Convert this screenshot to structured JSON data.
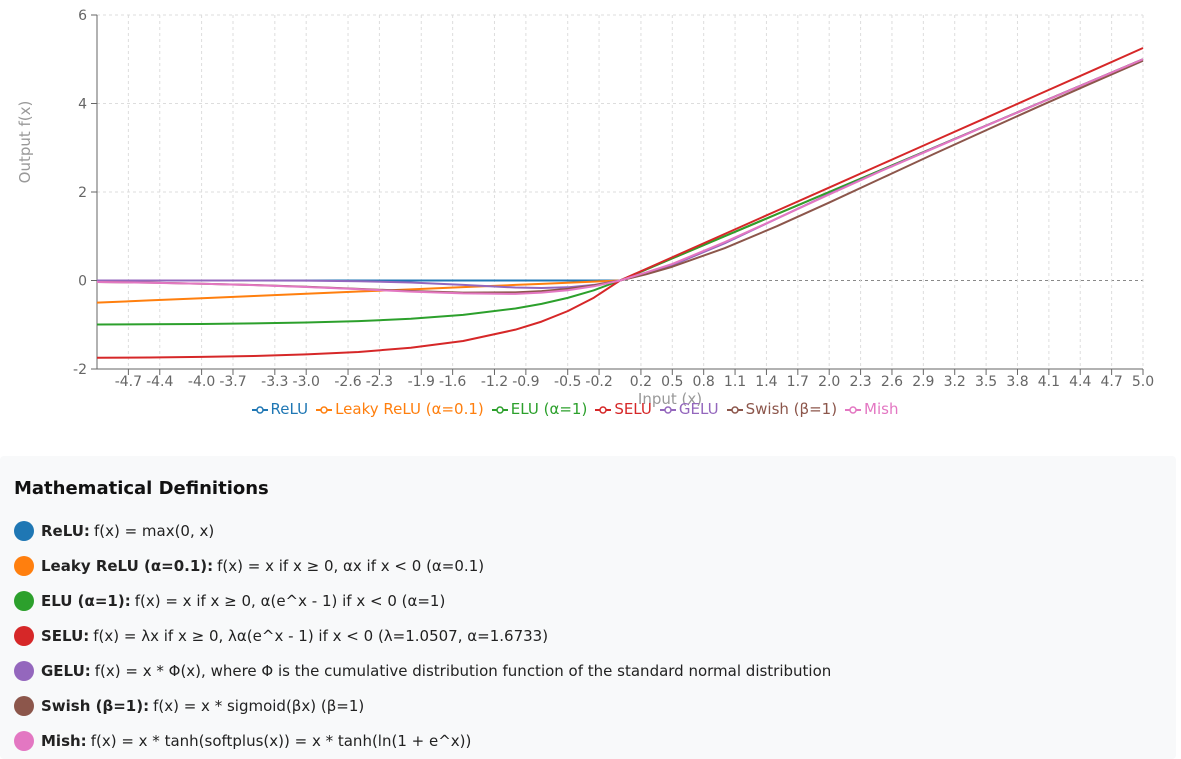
{
  "chart_data": {
    "type": "line",
    "title": "",
    "xlabel": "Input (x)",
    "ylabel": "Output f(x)",
    "xlim": [
      -5,
      5
    ],
    "ylim": [
      -2,
      6
    ],
    "yticks": [
      "-2",
      "0",
      "2",
      "4",
      "6"
    ],
    "xticks": [
      "-4.7",
      "-4.4",
      "-4.0",
      "-3.7",
      "-3.3",
      "-3.0",
      "-2.6",
      "-2.3",
      "-1.9",
      "-1.6",
      "-1.2",
      "-0.9",
      "-0.5",
      "-0.2",
      "0.2",
      "0.5",
      "0.8",
      "1.1",
      "1.4",
      "1.7",
      "2.0",
      "2.3",
      "2.6",
      "2.9",
      "3.2",
      "3.5",
      "3.8",
      "4.1",
      "4.4",
      "4.7",
      "5.0"
    ],
    "grid": true,
    "legend_position": "bottom",
    "x": [
      -5.0,
      -4.5,
      -4.0,
      -3.5,
      -3.0,
      -2.5,
      -2.0,
      -1.5,
      -1.0,
      -0.75,
      -0.5,
      -0.25,
      0.0,
      0.25,
      0.5,
      1.0,
      1.5,
      2.0,
      2.5,
      3.0,
      3.5,
      4.0,
      4.5,
      5.0
    ],
    "series": [
      {
        "name": "ReLU",
        "color": "#1f77b4",
        "values": [
          0,
          0,
          0,
          0,
          0,
          0,
          0,
          0,
          0,
          0,
          0,
          0,
          0,
          0.25,
          0.5,
          1,
          1.5,
          2,
          2.5,
          3,
          3.5,
          4,
          4.5,
          5
        ]
      },
      {
        "name": "Leaky ReLU (α=0.1)",
        "color": "#ff7f0e",
        "values": [
          -0.5,
          -0.45,
          -0.4,
          -0.35,
          -0.3,
          -0.25,
          -0.2,
          -0.15,
          -0.1,
          -0.075,
          -0.05,
          -0.025,
          0,
          0.25,
          0.5,
          1,
          1.5,
          2,
          2.5,
          3,
          3.5,
          4,
          4.5,
          5
        ]
      },
      {
        "name": "ELU (α=1)",
        "color": "#2ca02c",
        "values": [
          -0.993,
          -0.989,
          -0.982,
          -0.97,
          -0.95,
          -0.918,
          -0.865,
          -0.777,
          -0.632,
          -0.528,
          -0.393,
          -0.221,
          0,
          0.25,
          0.5,
          1,
          1.5,
          2,
          2.5,
          3,
          3.5,
          4,
          4.5,
          5
        ]
      },
      {
        "name": "SELU",
        "color": "#d62728",
        "values": [
          -1.747,
          -1.739,
          -1.727,
          -1.705,
          -1.67,
          -1.615,
          -1.52,
          -1.367,
          -1.111,
          -0.929,
          -0.692,
          -0.389,
          0,
          0.263,
          0.525,
          1.051,
          1.576,
          2.101,
          2.627,
          3.152,
          3.677,
          4.203,
          4.728,
          5.254
        ]
      },
      {
        "name": "GELU",
        "color": "#9467bd",
        "values": [
          0,
          0,
          0,
          -0.001,
          -0.004,
          -0.016,
          -0.045,
          -0.1,
          -0.159,
          -0.17,
          -0.154,
          -0.1,
          0,
          0.15,
          0.346,
          0.841,
          1.4,
          1.955,
          2.484,
          2.996,
          3.499,
          4.0,
          4.5,
          5.0
        ]
      },
      {
        "name": "Swish (β=1)",
        "color": "#8c564b",
        "values": [
          -0.033,
          -0.049,
          -0.072,
          -0.102,
          -0.142,
          -0.189,
          -0.238,
          -0.274,
          -0.269,
          -0.239,
          -0.189,
          -0.109,
          0,
          0.14,
          0.311,
          0.731,
          1.227,
          1.762,
          2.31,
          2.858,
          3.396,
          3.928,
          4.45,
          4.967
        ]
      },
      {
        "name": "Mish",
        "color": "#e377c2",
        "values": [
          -0.034,
          -0.05,
          -0.073,
          -0.105,
          -0.146,
          -0.195,
          -0.252,
          -0.291,
          -0.303,
          -0.275,
          -0.221,
          -0.131,
          0,
          0.183,
          0.375,
          0.865,
          1.4,
          1.944,
          2.477,
          2.987,
          3.495,
          3.997,
          4.499,
          5.0
        ]
      }
    ]
  },
  "definitions": {
    "heading": "Mathematical Definitions",
    "items": [
      {
        "name": "ReLU:",
        "formula": "f(x) = max(0, x)",
        "color": "#1f77b4"
      },
      {
        "name": "Leaky ReLU (α=0.1):",
        "formula": "f(x) = x if x ≥ 0, αx if x < 0 (α=0.1)",
        "color": "#ff7f0e"
      },
      {
        "name": "ELU (α=1):",
        "formula": "f(x) = x if x ≥ 0, α(e^x - 1) if x < 0 (α=1)",
        "color": "#2ca02c"
      },
      {
        "name": "SELU:",
        "formula": "f(x) = λx if x ≥ 0, λα(e^x - 1) if x < 0 (λ=1.0507, α=1.6733)",
        "color": "#d62728"
      },
      {
        "name": "GELU:",
        "formula": "f(x) = x * Φ(x), where Φ is the cumulative distribution function of the standard normal distribution",
        "color": "#9467bd"
      },
      {
        "name": "Swish (β=1):",
        "formula": "f(x) = x * sigmoid(βx) (β=1)",
        "color": "#8c564b"
      },
      {
        "name": "Mish:",
        "formula": "f(x) = x * tanh(softplus(x)) = x * tanh(ln(1 + e^x))",
        "color": "#e377c2"
      }
    ]
  }
}
